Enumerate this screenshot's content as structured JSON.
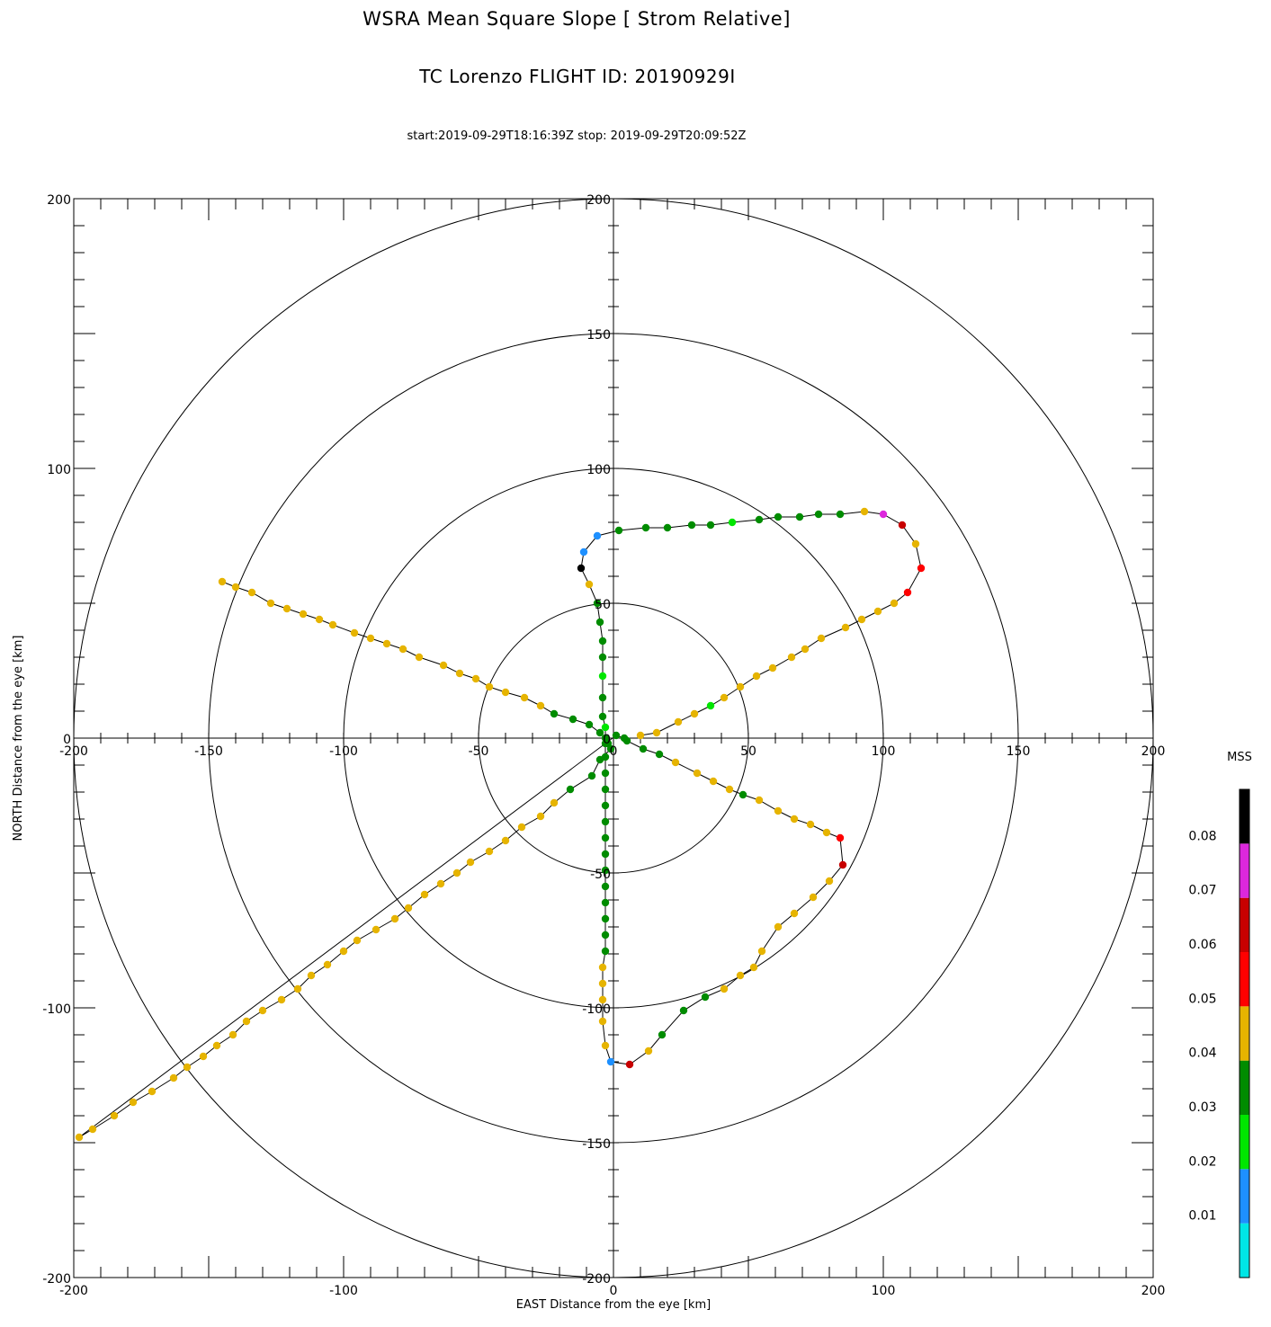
{
  "chart_data": {
    "type": "scatter",
    "title": "WSRA Mean Square Slope [ Strom Relative]",
    "subtitle": "TC Lorenzo FLIGHT ID: 20190929I",
    "time_range": "start:2019-09-29T18:16:39Z stop: 2019-09-29T20:09:52Z",
    "xlabel": "EAST Distance from the eye [km]",
    "ylabel": "NORTH Distance from the eye [km]",
    "xlim": [
      -200,
      200
    ],
    "ylim": [
      -200,
      200
    ],
    "x_ticks": [
      "-200",
      "-100",
      "0",
      "100",
      "200"
    ],
    "y_ticks": [
      "-200",
      "-100",
      "0",
      "100",
      "200"
    ],
    "ring_radii": [
      50,
      100,
      150,
      200
    ],
    "axis_labels_top": [
      "-200",
      "-150",
      "-100",
      "-50",
      "0",
      "50",
      "100",
      "150",
      "200"
    ],
    "axis_labels_left": [
      "200",
      "150",
      "100",
      "50",
      "0",
      "-50",
      "-100",
      "-150",
      "-200"
    ],
    "colorbar": {
      "title": "MSS",
      "tick_labels": [
        "0.08",
        "0.07",
        "0.06",
        "0.05",
        "0.04",
        "0.03",
        "0.02",
        "0.01"
      ],
      "colors_bottom_to_top": [
        "#00e6e6",
        "#1e90ff",
        "#00e600",
        "#008c00",
        "#e6b400",
        "#ff0000",
        "#c80000",
        "#dc28dc",
        "#000000"
      ],
      "range": [
        0,
        0.09
      ]
    },
    "track": [
      [
        -145,
        58,
        0.044
      ],
      [
        -140,
        56,
        0.045
      ],
      [
        -134,
        54,
        0.044
      ],
      [
        -127,
        50,
        0.045
      ],
      [
        -121,
        48,
        0.044
      ],
      [
        -115,
        46,
        0.045
      ],
      [
        -109,
        44,
        0.044
      ],
      [
        -104,
        42,
        0.045
      ],
      [
        -96,
        39,
        0.044
      ],
      [
        -90,
        37,
        0.045
      ],
      [
        -84,
        35,
        0.044
      ],
      [
        -78,
        33,
        0.045
      ],
      [
        -72,
        30,
        0.044
      ],
      [
        -63,
        27,
        0.045
      ],
      [
        -57,
        24,
        0.044
      ],
      [
        -51,
        22,
        0.045
      ],
      [
        -46,
        19,
        0.044
      ],
      [
        -40,
        17,
        0.045
      ],
      [
        -33,
        15,
        0.044
      ],
      [
        -27,
        12,
        0.045
      ],
      [
        -22,
        9,
        0.035
      ],
      [
        -15,
        7,
        0.035
      ],
      [
        -9,
        5,
        0.035
      ],
      [
        -5,
        2,
        0.035
      ],
      [
        -3,
        0,
        0.035
      ],
      [
        -2,
        -2,
        0.035
      ],
      [
        -1,
        -4,
        0.035
      ],
      [
        -5,
        -8,
        0.035
      ],
      [
        -8,
        -14,
        0.035
      ],
      [
        -16,
        -19,
        0.035
      ],
      [
        -22,
        -24,
        0.044
      ],
      [
        -27,
        -29,
        0.045
      ],
      [
        -34,
        -33,
        0.044
      ],
      [
        -40,
        -38,
        0.045
      ],
      [
        -46,
        -42,
        0.044
      ],
      [
        -53,
        -46,
        0.045
      ],
      [
        -58,
        -50,
        0.044
      ],
      [
        -64,
        -54,
        0.045
      ],
      [
        -70,
        -58,
        0.044
      ],
      [
        -76,
        -63,
        0.045
      ],
      [
        -81,
        -67,
        0.044
      ],
      [
        -88,
        -71,
        0.045
      ],
      [
        -95,
        -75,
        0.044
      ],
      [
        -100,
        -79,
        0.045
      ],
      [
        -106,
        -84,
        0.044
      ],
      [
        -112,
        -88,
        0.045
      ],
      [
        -117,
        -93,
        0.044
      ],
      [
        -123,
        -97,
        0.045
      ],
      [
        -130,
        -101,
        0.044
      ],
      [
        -136,
        -105,
        0.045
      ],
      [
        -141,
        -110,
        0.044
      ],
      [
        -147,
        -114,
        0.045
      ],
      [
        -152,
        -118,
        0.044
      ],
      [
        -158,
        -122,
        0.045
      ],
      [
        -163,
        -126,
        0.044
      ],
      [
        -171,
        -131,
        0.045
      ],
      [
        -178,
        -135,
        0.044
      ],
      [
        -185,
        -140,
        0.045
      ],
      [
        -193,
        -145,
        0.044
      ],
      [
        -198,
        -148,
        0.045
      ],
      [
        1,
        1,
        0.035
      ],
      [
        4,
        0,
        0.035
      ],
      [
        5,
        -1,
        0.035
      ],
      [
        11,
        -4,
        0.035
      ],
      [
        17,
        -6,
        0.035
      ],
      [
        23,
        -9,
        0.044
      ],
      [
        31,
        -13,
        0.045
      ],
      [
        37,
        -16,
        0.044
      ],
      [
        43,
        -19,
        0.045
      ],
      [
        48,
        -21,
        0.035
      ],
      [
        54,
        -23,
        0.044
      ],
      [
        61,
        -27,
        0.045
      ],
      [
        67,
        -30,
        0.044
      ],
      [
        73,
        -32,
        0.045
      ],
      [
        79,
        -35,
        0.044
      ],
      [
        84,
        -37,
        0.055
      ],
      [
        85,
        -47,
        0.065
      ],
      [
        80,
        -53,
        0.044
      ],
      [
        74,
        -59,
        0.045
      ],
      [
        67,
        -65,
        0.044
      ],
      [
        61,
        -70,
        0.045
      ],
      [
        55,
        -79,
        0.044
      ],
      [
        52,
        -85,
        0.045
      ],
      [
        47,
        -88,
        0.044
      ],
      [
        41,
        -93,
        0.045
      ],
      [
        34,
        -96,
        0.035
      ],
      [
        26,
        -101,
        0.035
      ],
      [
        18,
        -110,
        0.035
      ],
      [
        13,
        -116,
        0.044
      ],
      [
        6,
        -121,
        0.065
      ],
      [
        -1,
        -120,
        0.015
      ],
      [
        -3,
        -114,
        0.044
      ],
      [
        -4,
        -105,
        0.044
      ],
      [
        -4,
        -97,
        0.045
      ],
      [
        -4,
        -91,
        0.044
      ],
      [
        -4,
        -85,
        0.045
      ],
      [
        -3,
        -79,
        0.035
      ],
      [
        -3,
        -73,
        0.035
      ],
      [
        -3,
        -67,
        0.035
      ],
      [
        -3,
        -61,
        0.035
      ],
      [
        -3,
        -55,
        0.035
      ],
      [
        -3,
        -49,
        0.035
      ],
      [
        -3,
        -43,
        0.035
      ],
      [
        -3,
        -37,
        0.035
      ],
      [
        -3,
        -31,
        0.035
      ],
      [
        -3,
        -25,
        0.035
      ],
      [
        -3,
        -19,
        0.035
      ],
      [
        -3,
        -13,
        0.035
      ],
      [
        -3,
        -7,
        0.035
      ],
      [
        -3,
        -2,
        0.035
      ],
      [
        -3,
        4,
        0.025
      ],
      [
        -4,
        8,
        0.035
      ],
      [
        -4,
        15,
        0.035
      ],
      [
        -4,
        23,
        0.025
      ],
      [
        -4,
        30,
        0.035
      ],
      [
        -4,
        36,
        0.035
      ],
      [
        -5,
        43,
        0.035
      ],
      [
        -6,
        50,
        0.035
      ],
      [
        -9,
        57,
        0.044
      ],
      [
        -12,
        63,
        0.095
      ],
      [
        -11,
        69,
        0.015
      ],
      [
        -6,
        75,
        0.015
      ],
      [
        2,
        77,
        0.035
      ],
      [
        12,
        78,
        0.035
      ],
      [
        20,
        78,
        0.035
      ],
      [
        29,
        79,
        0.035
      ],
      [
        36,
        79,
        0.035
      ],
      [
        44,
        80,
        0.025
      ],
      [
        54,
        81,
        0.035
      ],
      [
        61,
        82,
        0.035
      ],
      [
        69,
        82,
        0.035
      ],
      [
        76,
        83,
        0.035
      ],
      [
        84,
        83,
        0.035
      ],
      [
        93,
        84,
        0.044
      ],
      [
        100,
        83,
        0.075
      ],
      [
        107,
        79,
        0.065
      ],
      [
        112,
        72,
        0.044
      ],
      [
        114,
        63,
        0.055
      ],
      [
        109,
        54,
        0.055
      ],
      [
        104,
        50,
        0.044
      ],
      [
        98,
        47,
        0.045
      ],
      [
        92,
        44,
        0.044
      ],
      [
        86,
        41,
        0.045
      ],
      [
        77,
        37,
        0.044
      ],
      [
        71,
        33,
        0.045
      ],
      [
        66,
        30,
        0.044
      ],
      [
        59,
        26,
        0.045
      ],
      [
        53,
        23,
        0.044
      ],
      [
        47,
        19,
        0.045
      ],
      [
        41,
        15,
        0.044
      ],
      [
        36,
        12,
        0.025
      ],
      [
        30,
        9,
        0.045
      ],
      [
        24,
        6,
        0.044
      ],
      [
        16,
        2,
        0.045
      ],
      [
        10,
        1,
        0.044
      ]
    ],
    "grid": false,
    "legend_position": "right"
  }
}
